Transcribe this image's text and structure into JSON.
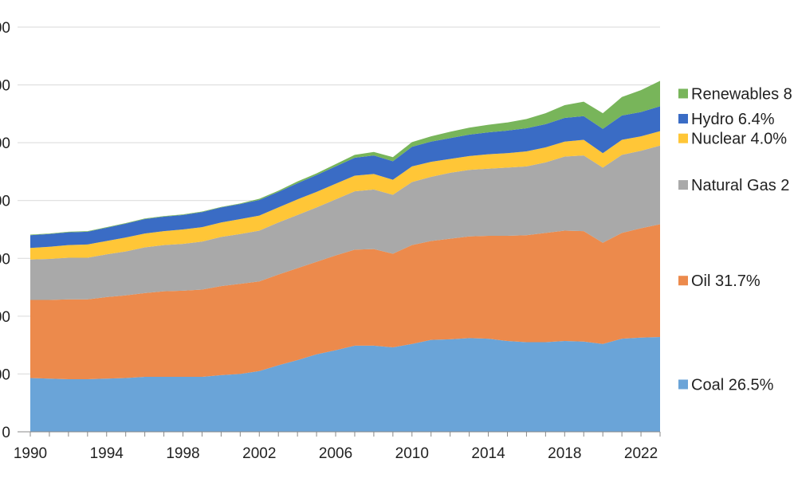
{
  "chart_data": {
    "type": "area",
    "stacked": true,
    "title": "",
    "xlabel": "",
    "ylabel": "",
    "x": [
      1990,
      1991,
      1992,
      1993,
      1994,
      1995,
      1996,
      1997,
      1998,
      1999,
      2000,
      2001,
      2002,
      2003,
      2004,
      2005,
      2006,
      2007,
      2008,
      2009,
      2010,
      2011,
      2012,
      2013,
      2014,
      2015,
      2016,
      2017,
      2018,
      2019,
      2020,
      2021,
      2022,
      2023
    ],
    "xlim": [
      1990,
      2023
    ],
    "ylim": [
      0,
      700
    ],
    "y_ticks": [
      0,
      100,
      200,
      300,
      400,
      500,
      600,
      700
    ],
    "y_tick_labels": [
      "0",
      "00",
      "00",
      "00",
      "00",
      "00",
      "00",
      "00"
    ],
    "x_tick_values": [
      1990,
      1994,
      1998,
      2002,
      2006,
      2010,
      2014,
      2018,
      2022
    ],
    "x_tick_labels": [
      "1990",
      "1994",
      "1998",
      "2002",
      "2006",
      "2010",
      "2014",
      "2018",
      "2022"
    ],
    "grid": true,
    "legend_position": "right",
    "series": [
      {
        "name": "Coal",
        "label": "Coal 26.5%",
        "color": "#6aa4d8",
        "values": [
          93,
          92,
          91,
          91,
          92,
          93,
          95,
          95,
          95,
          95,
          98,
          100,
          105,
          115,
          124,
          134,
          141,
          149,
          149,
          146,
          152,
          159,
          160,
          162,
          161,
          157,
          155,
          155,
          157,
          156,
          152,
          161,
          163,
          164
        ]
      },
      {
        "name": "Oil",
        "label": "Oil 31.7%",
        "color": "#ec8a4c",
        "values": [
          135,
          136,
          138,
          138,
          141,
          143,
          145,
          148,
          149,
          151,
          154,
          156,
          155,
          157,
          159,
          160,
          164,
          166,
          167,
          162,
          171,
          171,
          174,
          176,
          178,
          182,
          185,
          189,
          191,
          191,
          175,
          183,
          189,
          195
        ]
      },
      {
        "name": "Natural Gas",
        "label": "Natural Gas 2",
        "color": "#a9a9a9",
        "values": [
          70,
          71,
          72,
          72,
          74,
          76,
          79,
          80,
          81,
          83,
          85,
          86,
          88,
          90,
          92,
          94,
          97,
          101,
          103,
          102,
          109,
          111,
          114,
          115,
          116,
          118,
          119,
          122,
          128,
          131,
          130,
          135,
          134,
          136
        ]
      },
      {
        "name": "Nuclear",
        "label": "Nuclear 4.0%",
        "color": "#ffc637",
        "values": [
          20,
          21,
          22,
          23,
          23,
          24,
          24,
          24,
          25,
          25,
          25,
          26,
          26,
          26,
          27,
          27,
          27,
          27,
          27,
          26,
          27,
          26,
          24,
          24,
          25,
          25,
          26,
          26,
          26,
          27,
          25,
          26,
          25,
          25
        ]
      },
      {
        "name": "Hydro",
        "label": "Hydro 6.4%",
        "color": "#3a6cc5",
        "values": [
          22,
          22,
          22,
          22,
          23,
          24,
          25,
          25,
          25,
          26,
          26,
          26,
          27,
          27,
          28,
          29,
          30,
          31,
          32,
          32,
          34,
          35,
          36,
          37,
          38,
          39,
          40,
          40,
          41,
          41,
          42,
          42,
          42,
          43
        ]
      },
      {
        "name": "Renewables",
        "label": "Renewables 8",
        "color": "#78b55a",
        "values": [
          1,
          1,
          1,
          1,
          1,
          1,
          1,
          1,
          1,
          1,
          1,
          1,
          2,
          2,
          3,
          3,
          4,
          5,
          6,
          7,
          8,
          9,
          11,
          12,
          13,
          14,
          16,
          19,
          22,
          25,
          27,
          32,
          38,
          44
        ]
      }
    ]
  }
}
